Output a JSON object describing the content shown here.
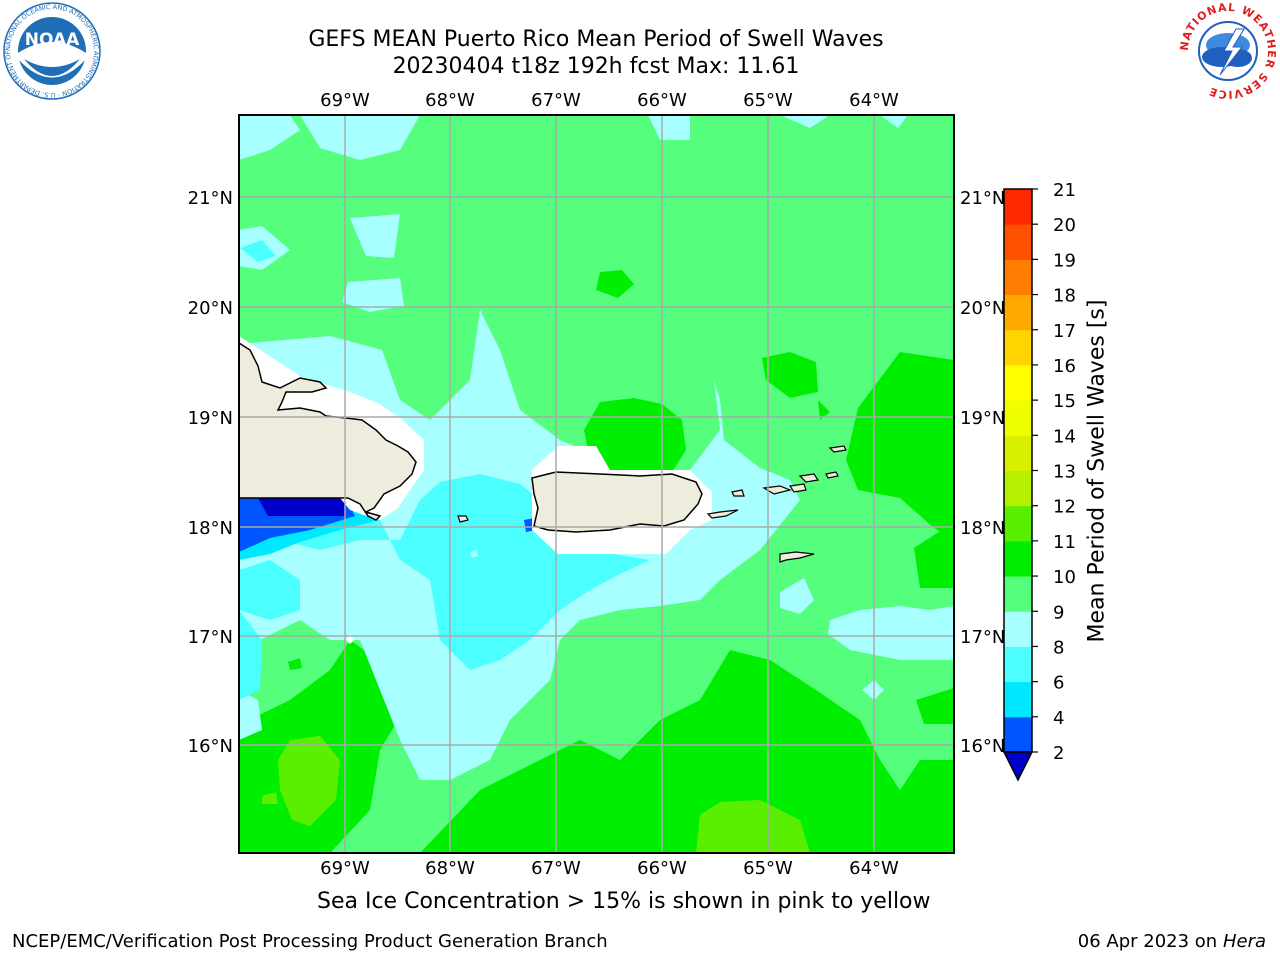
{
  "header": {
    "title_line1": "GEFS MEAN Puerto Rico Mean Period of Swell Waves",
    "title_line2": "20230404 t18z 192h fcst   Max: 11.61"
  },
  "logos": {
    "left": {
      "text": "NOAA",
      "ring_text": "NATIONAL OCEANIC AND ATMOSPHERIC ADMINISTRATION · U.S. DEPARTMENT OF COMMERCE",
      "colors": {
        "blue": "#1f6fb8",
        "dark": "#0a3a7a"
      }
    },
    "right": {
      "ring_text": "NATIONAL WEATHER SERVICE",
      "colors": {
        "red": "#e02020",
        "blue": "#1f5fbf"
      }
    }
  },
  "map": {
    "lon_labels": [
      "69°W",
      "68°W",
      "67°W",
      "66°W",
      "65°W",
      "64°W"
    ],
    "lat_labels": [
      "21°N",
      "20°N",
      "19°N",
      "18°N",
      "17°N",
      "16°N"
    ],
    "colors": {
      "land": "#eeecdc",
      "coast": "#000000",
      "grid": "#aaaaaa",
      "masked": "#ffffff"
    }
  },
  "colorbar": {
    "label": "Mean Period of Swell Waves [s]",
    "ticks": [
      "2",
      "4",
      "6",
      "8",
      "9",
      "10",
      "11",
      "12",
      "13",
      "14",
      "15",
      "16",
      "17",
      "18",
      "19",
      "20",
      "21"
    ],
    "colors": [
      "#0055ff",
      "#00e8ff",
      "#4cffff",
      "#a8ffff",
      "#55ff7d",
      "#00ee00",
      "#5aee00",
      "#b4f000",
      "#d8f000",
      "#f0ff00",
      "#ffff00",
      "#ffd400",
      "#ffa800",
      "#ff7d00",
      "#ff5000",
      "#ff2800",
      "#ff0000"
    ],
    "under_color": "#0000cc"
  },
  "annotation": {
    "sea_ice": "Sea Ice Concentration > 15% is shown in pink to yellow"
  },
  "footer": {
    "left": "NCEP/EMC/Verification Post Processing Product Generation Branch",
    "date": "06 Apr 2023 on",
    "machine": "Hera"
  }
}
